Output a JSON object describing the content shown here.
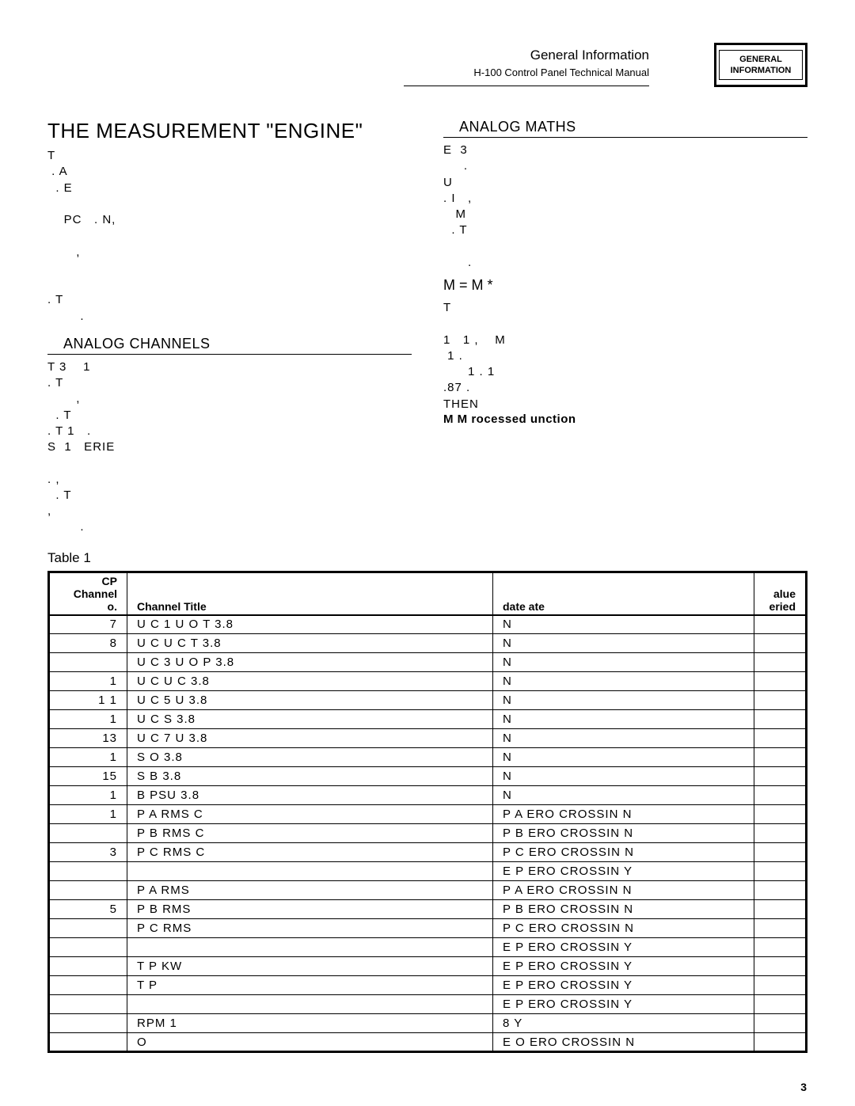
{
  "header": {
    "section": "General Information",
    "manual": "H-100 Control Panel Technical Manual",
    "badge_line1": "GENERAL",
    "badge_line2": "INFORMATION"
  },
  "left": {
    "main_title": "THE MEASUREMENT \"ENGINE\"",
    "intro": "T\n . A\n  . E\n\n    PC   . N,\n\n       ,\n\n\n. T\n        .",
    "section1_title": "ANALOG CHANNELS",
    "section1_body": "T 3    1\n. T\n       ,\n  . T\n. T 1   .\nS  1   ERIE\n\n. ,\n  . T\n,\n        ."
  },
  "right": {
    "section_title": "ANALOG MATHS",
    "body1": "E  3\n     .\nU\n. I   ,\n   M\n  . T\n\n      .",
    "formula": "M = M *",
    "body2": "T\n\n1   1 ,    M\n 1 .\n      1 . 1\n.87 .\nTHEN",
    "bold": "M  M rocessed  unction"
  },
  "table": {
    "caption": "Table 1",
    "headers": [
      "CP\nChannel\no.",
      "Channel Title",
      "date ate",
      "alue\neried"
    ],
    "rows": [
      [
        "7",
        "U C 1 U O T               3.8",
        "N",
        ""
      ],
      [
        "8",
        "U C  U C T          3.8",
        "N",
        ""
      ],
      [
        "",
        "U C 3 U O P          3.8",
        "N",
        ""
      ],
      [
        "1",
        "U C  U C           3.8",
        "N",
        ""
      ],
      [
        "1 1",
        "U C 5 U              3.8",
        "N",
        ""
      ],
      [
        "1",
        "U C   S                     3.8",
        "N",
        ""
      ],
      [
        "13",
        "U C 7 U          3.8",
        "N",
        ""
      ],
      [
        "1",
        "S O                           3.8",
        "N",
        ""
      ],
      [
        "15",
        "S B                         3.8",
        "N",
        ""
      ],
      [
        "1",
        "B  PSU                     3.8",
        "N",
        ""
      ],
      [
        "1",
        "P A RMS C",
        "P A ERO CROSSIN            N",
        ""
      ],
      [
        "",
        "P B RMS C",
        "P B ERO CROSSIN             N",
        ""
      ],
      [
        "3",
        "P C RMS C",
        "P C ERO CROSSIN             N",
        ""
      ],
      [
        "",
        "",
        "E P ERO CROSSIN         Y",
        ""
      ],
      [
        "",
        "P A RMS",
        "P A ERO CROSSIN            N",
        ""
      ],
      [
        "5",
        "P B RMS",
        "P B ERO CROSSIN             N",
        ""
      ],
      [
        "",
        "P C RMS",
        "P C ERO CROSSIN             N",
        ""
      ],
      [
        "",
        "",
        "E P ERO CROSSIN         Y",
        ""
      ],
      [
        "",
        "T P KW",
        "E P ERO CROSSIN          Y",
        ""
      ],
      [
        "",
        "T P",
        "E P ERO CROSSIN         Y",
        ""
      ],
      [
        "",
        "",
        "E P ERO CROSSIN         Y",
        ""
      ],
      [
        "",
        "RPM 1",
        "8                 Y",
        ""
      ],
      [
        "",
        "O",
        "E O ERO CROSSIN        N",
        ""
      ]
    ]
  },
  "page_number": "3"
}
